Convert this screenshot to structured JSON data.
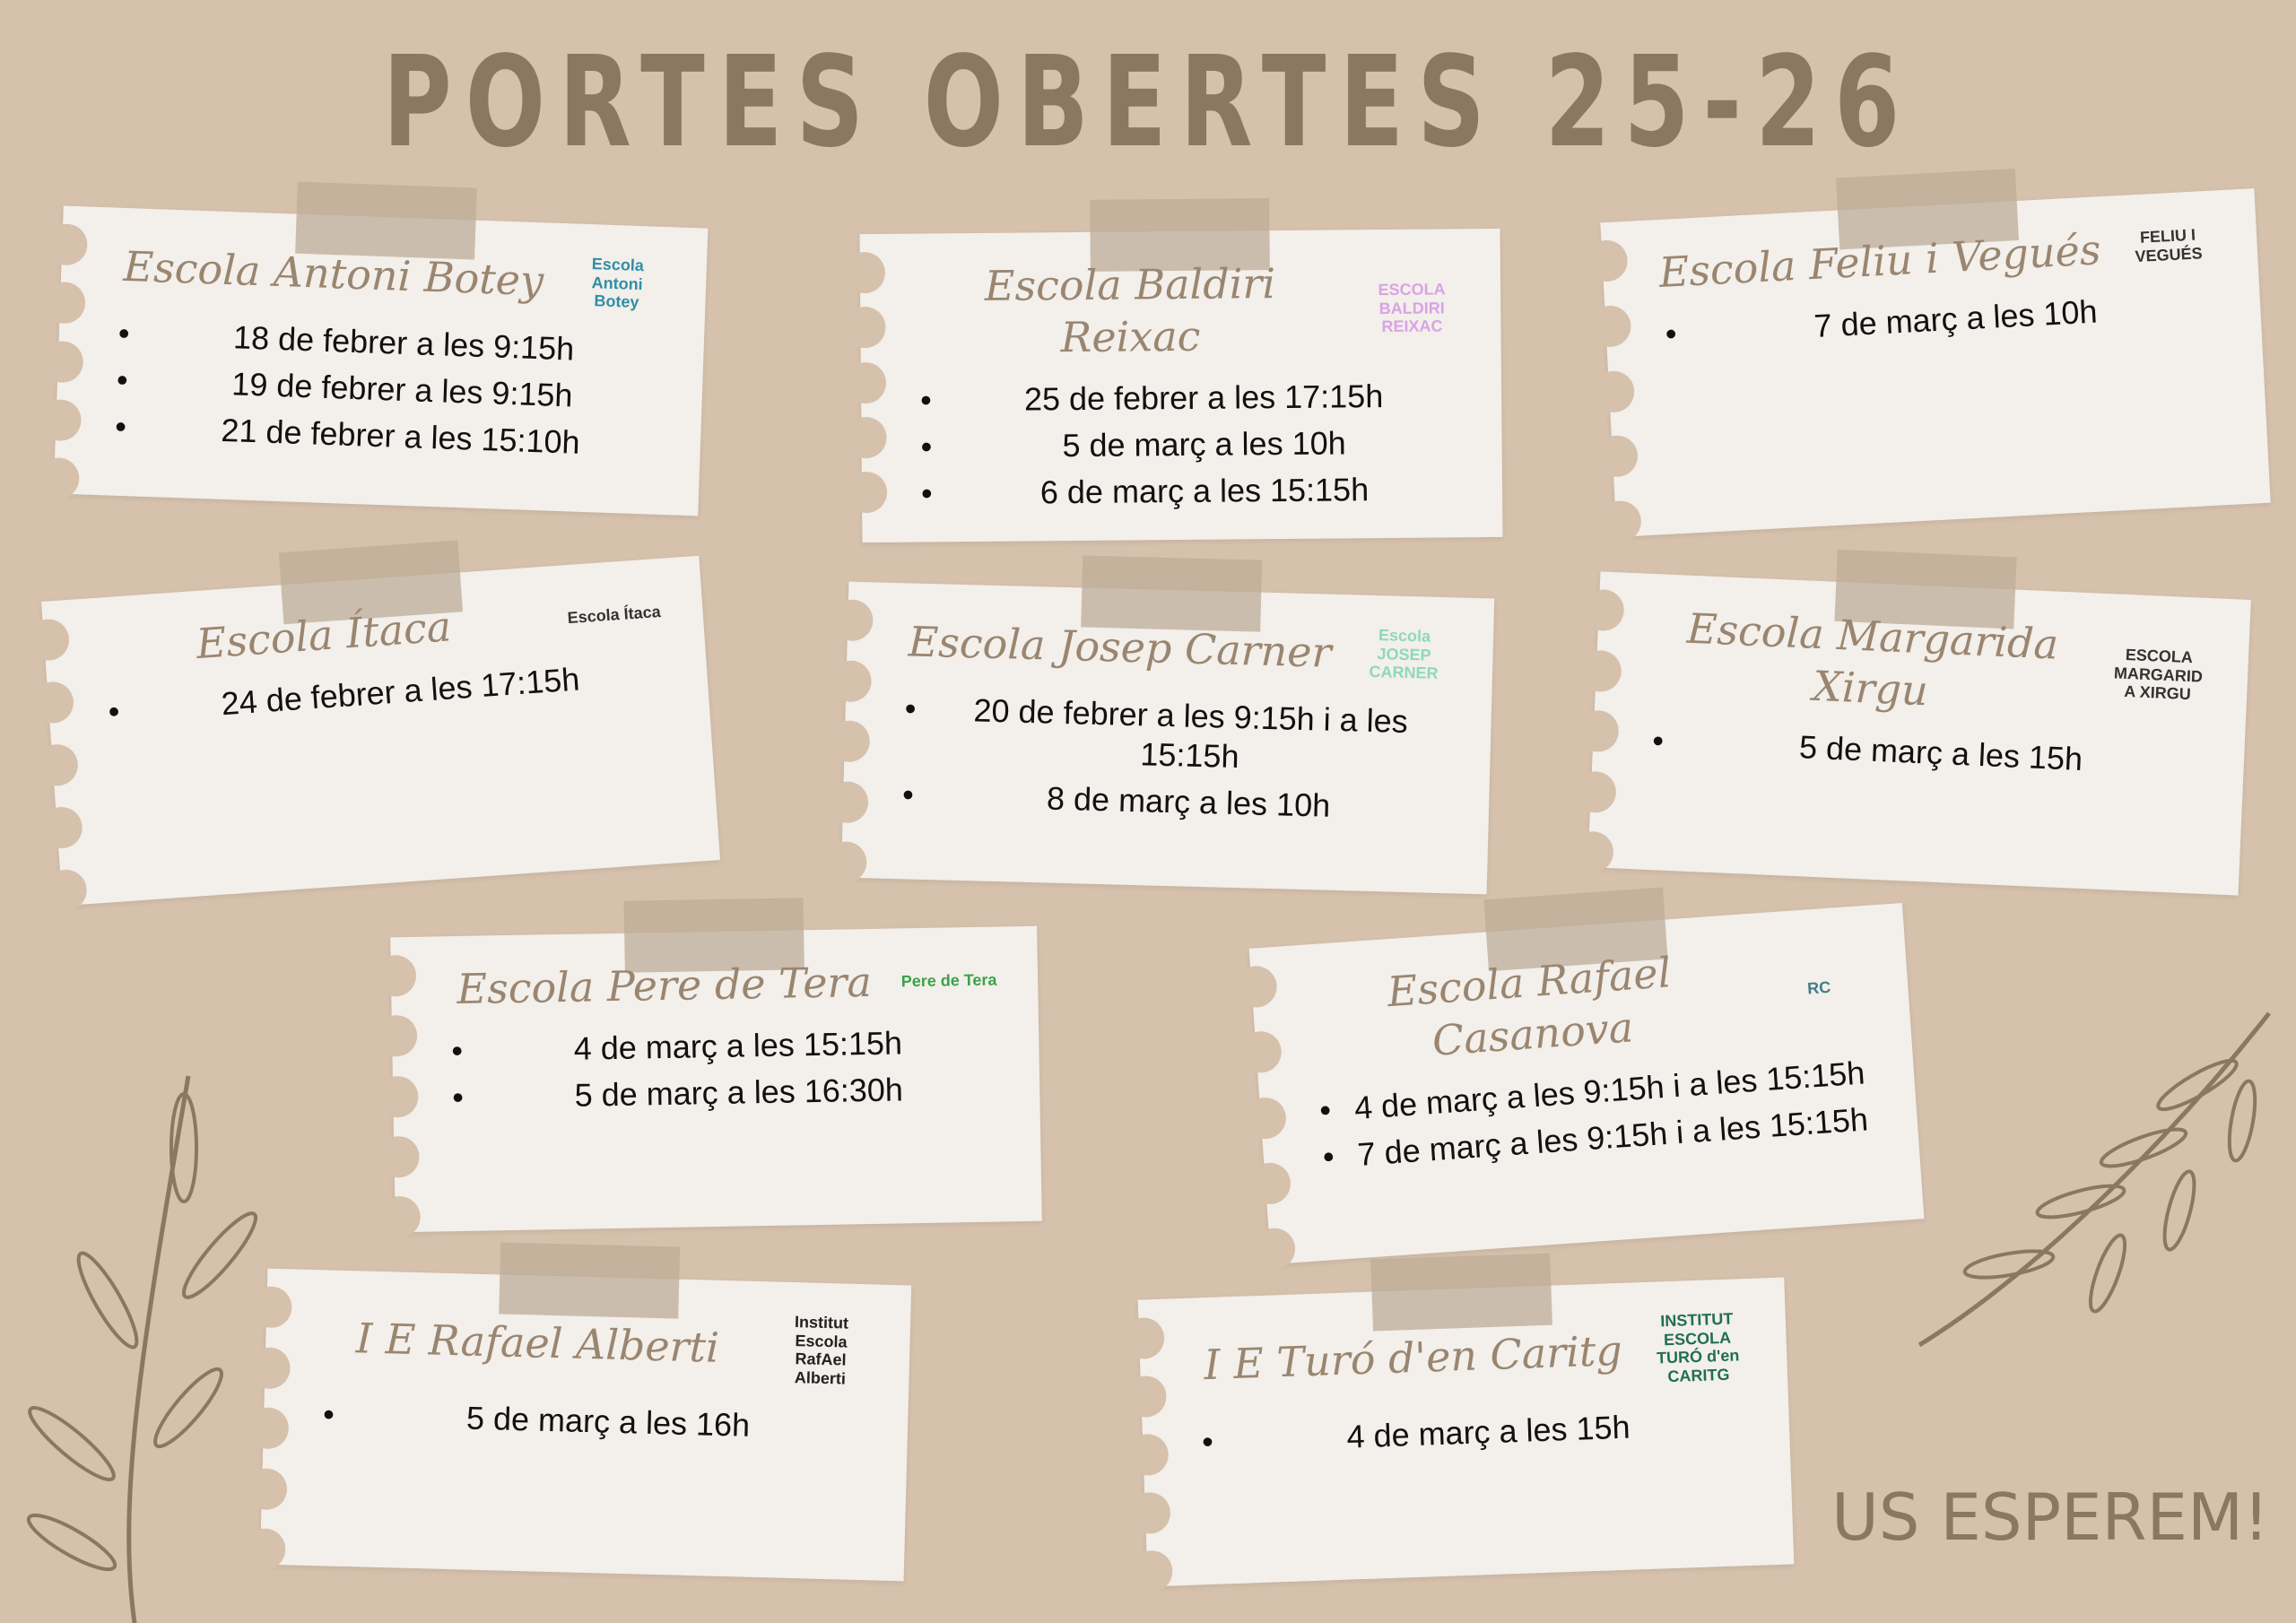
{
  "title": "PORTES OBERTES 25-26",
  "footer": "US ESPEREM!",
  "colors": {
    "background": "#d5c1ac",
    "card": "#f3efea",
    "title": "#8b7762",
    "script_title": "#9a8670",
    "tape": "#bfac98"
  },
  "cards": [
    {
      "name": "Escola Antoni Botey",
      "dates": [
        "18 de febrer a les 9:15h",
        "19 de febrer a les 9:15h",
        "21 de febrer a les 15:10h"
      ],
      "logo": "Escola Antoni Botey",
      "logo_color": "#2f8fa6"
    },
    {
      "name": "Escola Baldiri Reixac",
      "dates": [
        "25 de febrer a les 17:15h",
        "5 de març a les 10h",
        "6 de març a les 15:15h"
      ],
      "logo": "ESCOLA BALDIRI REIXAC",
      "logo_color": "#d9a3e6"
    },
    {
      "name": "Escola Feliu i Vegués",
      "dates": [
        "7 de març a les 10h"
      ],
      "logo": "FELIU I VEGUÉS",
      "logo_color": "#333333"
    },
    {
      "name": "Escola Ítaca",
      "dates": [
        "24 de febrer a les 17:15h"
      ],
      "logo": "Escola Ítaca",
      "logo_color": "#333333"
    },
    {
      "name": "Escola Josep Carner",
      "dates": [
        "20 de febrer a les 9:15h i a les 15:15h",
        "8 de març a les 10h"
      ],
      "logo": "Escola JOSEP CARNER",
      "logo_color": "#8fd9b8"
    },
    {
      "name": "Escola Margarida Xirgu",
      "dates": [
        "5 de març a les 15h"
      ],
      "logo": "ESCOLA MARGARIDA XIRGU",
      "logo_color": "#333333"
    },
    {
      "name": "Escola Pere de Tera",
      "dates": [
        "4 de març a les 15:15h",
        "5 de març a les 16:30h"
      ],
      "logo": "Pere de Tera",
      "logo_color": "#3aa24a"
    },
    {
      "name": "Escola Rafael Casanova",
      "dates": [
        "4 de març a les 9:15h i a les 15:15h",
        "7 de març a les 9:15h i a les 15:15h"
      ],
      "logo": "RC",
      "logo_color": "#3f7f86"
    },
    {
      "name": "I E Rafael Alberti",
      "dates": [
        "5 de març a les 16h"
      ],
      "logo": "Institut Escola RafAel Alberti",
      "logo_color": "#222222"
    },
    {
      "name": "I E Turó d'en Caritg",
      "dates": [
        "4 de març a les 15h"
      ],
      "logo": "INSTITUT ESCOLA TURÓ d'en CARITG",
      "logo_color": "#1f6f55"
    }
  ]
}
